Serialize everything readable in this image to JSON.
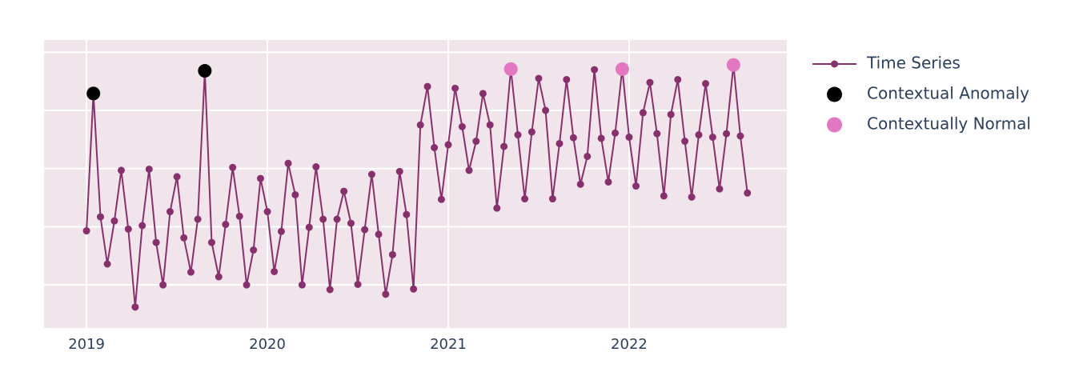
{
  "chart_data": {
    "type": "line",
    "x": [
      2019,
      2019.038,
      2019.077,
      2019.115,
      2019.154,
      2019.192,
      2019.231,
      2019.269,
      2019.308,
      2019.346,
      2019.385,
      2019.423,
      2019.462,
      2019.5,
      2019.538,
      2019.577,
      2019.615,
      2019.654,
      2019.692,
      2019.731,
      2019.769,
      2019.808,
      2019.846,
      2019.885,
      2019.923,
      2019.962,
      2020,
      2020.038,
      2020.077,
      2020.115,
      2020.154,
      2020.192,
      2020.231,
      2020.269,
      2020.308,
      2020.346,
      2020.385,
      2020.423,
      2020.462,
      2020.5,
      2020.538,
      2020.577,
      2020.615,
      2020.654,
      2020.692,
      2020.731,
      2020.769,
      2020.808,
      2020.846,
      2020.885,
      2020.923,
      2020.962,
      2021,
      2021.038,
      2021.077,
      2021.115,
      2021.154,
      2021.192,
      2021.231,
      2021.269,
      2021.308,
      2021.346,
      2021.385,
      2021.423,
      2021.462,
      2021.5,
      2021.538,
      2021.577,
      2021.615,
      2021.654,
      2021.692,
      2021.731,
      2021.769,
      2021.808,
      2021.846,
      2021.885,
      2021.923,
      2021.962,
      2022,
      2022.038,
      2022.077,
      2022.115,
      2022.154,
      2022.192,
      2022.231,
      2022.269,
      2022.308,
      2022.346,
      2022.385,
      2022.423,
      2022.462,
      2022.5,
      2022.538,
      2022.577,
      2022.615,
      2022.654
    ],
    "series": [
      {
        "name": "Time Series",
        "color": "#8a2f6e",
        "mode": "lines+markers",
        "values": [
          9.3,
          32.9,
          11.7,
          3.6,
          11.0,
          19.7,
          9.6,
          -3.8,
          10.2,
          19.9,
          7.3,
          0,
          12.6,
          18.6,
          8.1,
          2.2,
          11.3,
          36.8,
          7.3,
          1.4,
          10.4,
          20.2,
          11.8,
          0,
          6.0,
          18.3,
          12.6,
          2.3,
          9.2,
          20.9,
          15.5,
          0,
          9.9,
          20.3,
          11.3,
          -0.8,
          11.3,
          16.1,
          10.6,
          0.1,
          9.5,
          19.0,
          8.7,
          -1.6,
          5.2,
          19.5,
          12.1,
          -0.7,
          27.5,
          34.1,
          23.6,
          14.7,
          24.1,
          33.8,
          27.2,
          19.7,
          24.7,
          32.9,
          27.5,
          13.2,
          23.8,
          37.1,
          25.8,
          14.8,
          26.3,
          35.5,
          30.0,
          14.8,
          24.3,
          35.3,
          25.3,
          17.3,
          22.1,
          37.0,
          25.2,
          17.7,
          26.1,
          37.1,
          25.4,
          17.0,
          29.6,
          34.8,
          26.0,
          15.3,
          29.3,
          35.3,
          24.7,
          15.1,
          25.8,
          34.6,
          25.4,
          16.5,
          26.0,
          37.8,
          25.6,
          15.8
        ]
      },
      {
        "name": "Contextual Anomaly",
        "color": "#000000",
        "mode": "markers",
        "x": [
          2019.038,
          2019.654
        ],
        "values": [
          32.9,
          36.8
        ]
      },
      {
        "name": "Contextually Normal",
        "color": "#e377c2",
        "mode": "markers",
        "x": [
          2021.346,
          2021.962,
          2022.577
        ],
        "values": [
          37.1,
          37.1,
          37.8
        ]
      }
    ],
    "xlim": [
      2018.765,
      2022.872
    ],
    "xticks": [
      2019,
      2020,
      2021,
      2022
    ],
    "ylim": [
      -7.4,
      42.1
    ],
    "yticks": [
      0,
      10,
      20,
      30,
      40
    ],
    "grid": true,
    "legend": "right"
  }
}
